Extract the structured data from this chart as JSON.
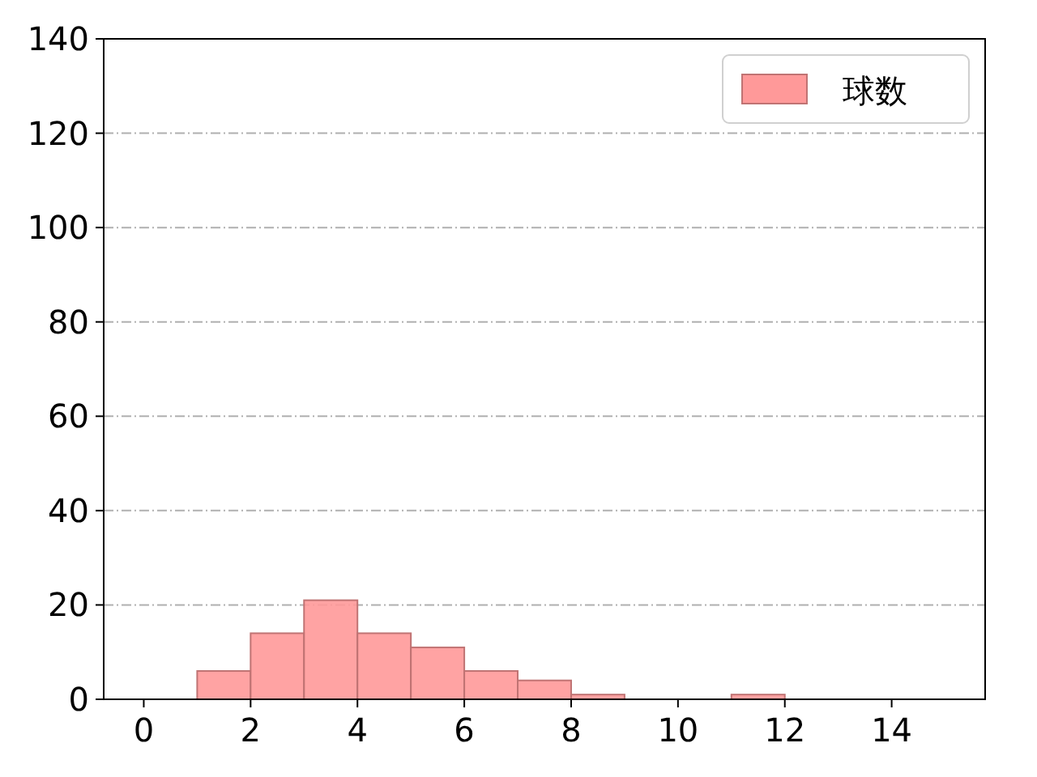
{
  "chart_data": {
    "type": "histogram",
    "bins": [
      0,
      1,
      2,
      3,
      4,
      5,
      6,
      7,
      8,
      9,
      10,
      11,
      12,
      13,
      14,
      15
    ],
    "series": [
      {
        "name": "球数",
        "color": "#ff9999",
        "values": [
          0,
          6,
          14,
          21,
          14,
          11,
          6,
          4,
          1,
          0,
          0,
          1,
          0,
          0,
          0
        ]
      }
    ],
    "xlim": [
      -0.75,
      15.75
    ],
    "xticks": [
      0,
      2,
      4,
      6,
      8,
      10,
      12,
      14
    ],
    "ylim": [
      0,
      140
    ],
    "yticks": [
      0,
      20,
      40,
      60,
      80,
      100,
      120,
      140
    ],
    "grid": "y",
    "legend": "top right"
  }
}
